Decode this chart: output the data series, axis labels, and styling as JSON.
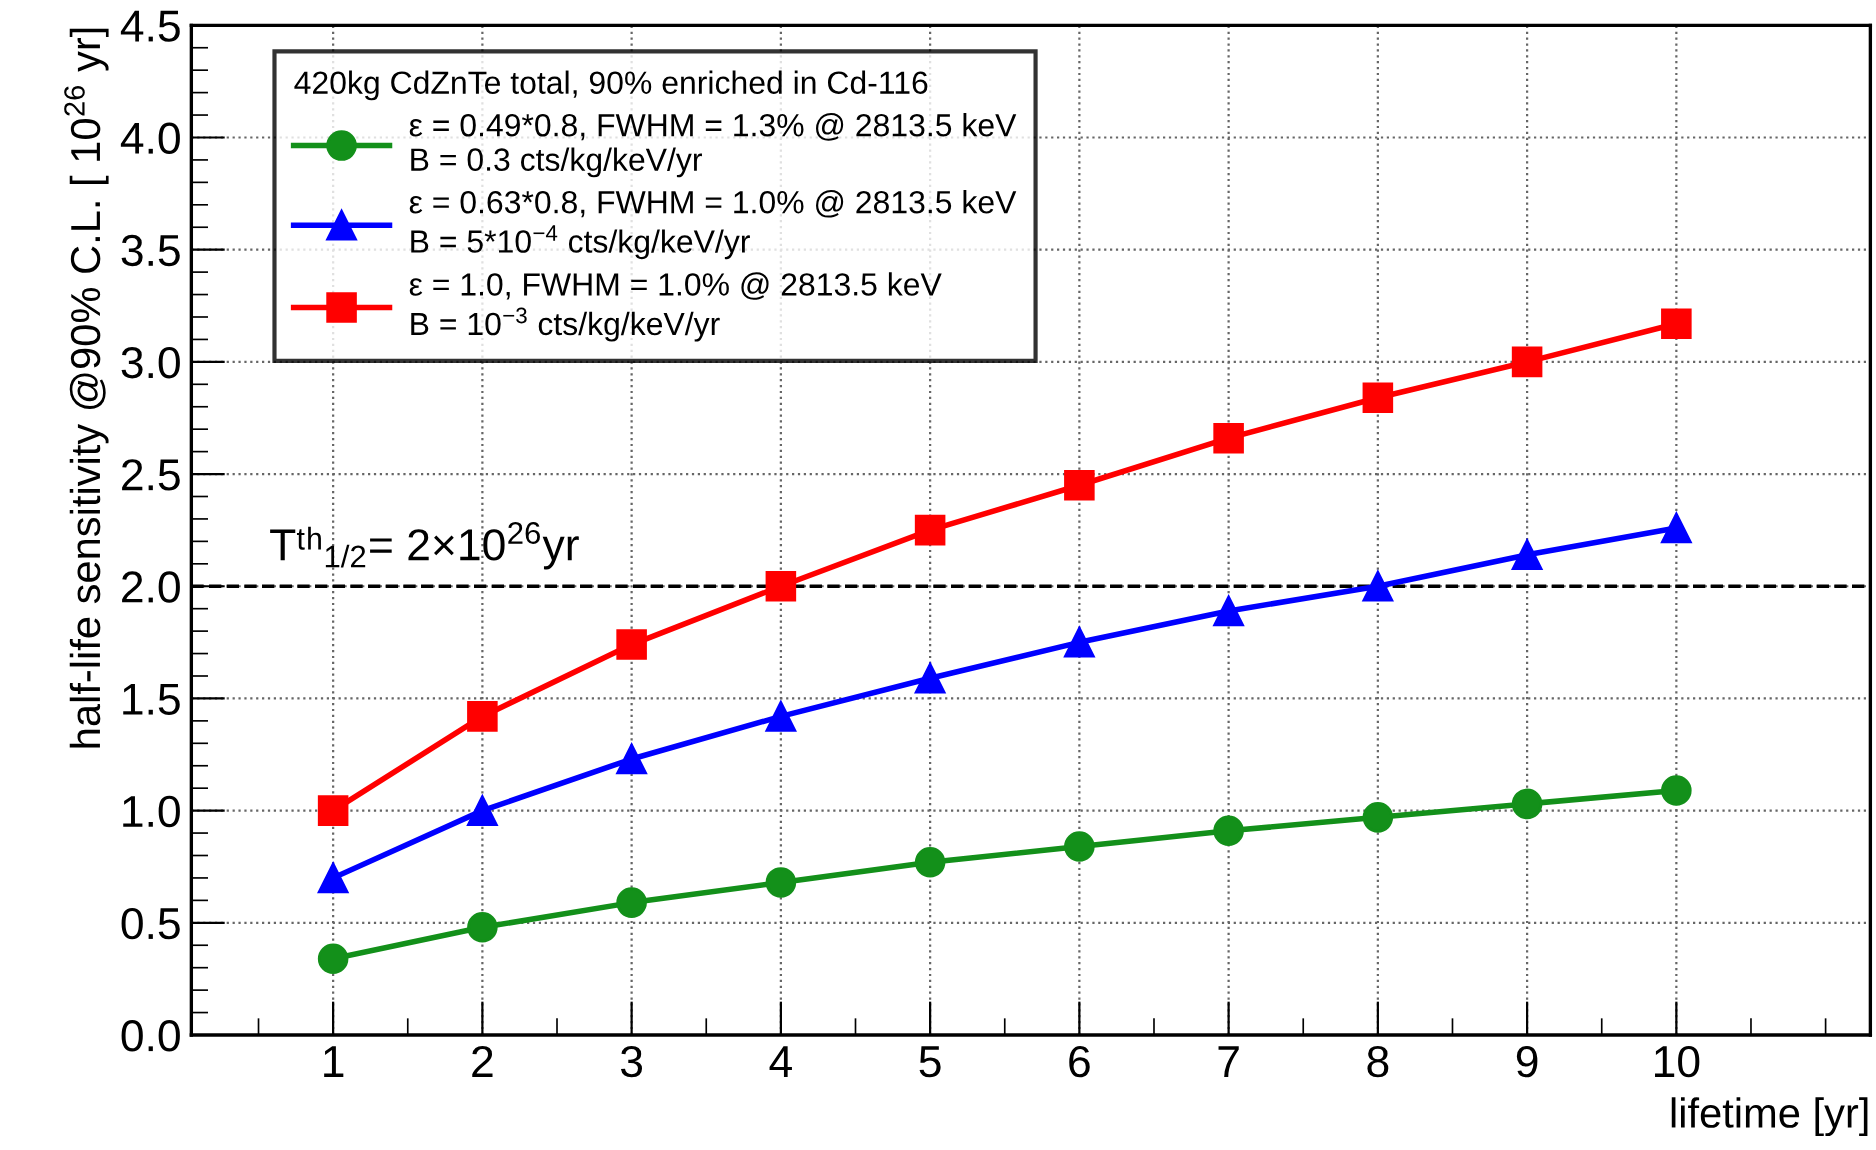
{
  "chart_data": {
    "type": "line",
    "xlabel": "lifetime [yr]",
    "ylabel": "half-life sensitivity @90% C.L. [ 10$^{26}$ yr]",
    "legend_title": "420kg CdZnTe total, 90% enriched in Cd-116",
    "x": [
      1,
      2,
      3,
      4,
      5,
      6,
      7,
      8,
      9,
      10
    ],
    "series": [
      {
        "name": "ε = 0.49*0.8, FWHM = 1.3% @ 2813.5 keV\nB = 0.3 cts/kg/keV/yr",
        "color": "#13901a",
        "marker": "circle",
        "values": [
          0.34,
          0.48,
          0.59,
          0.68,
          0.77,
          0.84,
          0.91,
          0.97,
          1.03,
          1.09
        ]
      },
      {
        "name": "ε = 0.63*0.8, FWHM = 1.0% @ 2813.5 keV\nB = 5*10$^{−4}$ cts/kg/keV/yr",
        "color": "#0000ff",
        "marker": "triangle",
        "values": [
          0.7,
          1.0,
          1.23,
          1.42,
          1.59,
          1.75,
          1.89,
          2.0,
          2.14,
          2.26
        ]
      },
      {
        "name": "ε = 1.0, FWHM = 1.0% @ 2813.5 keV\nB = 10$^{−3}$ cts/kg/keV/yr",
        "color": "#ff0000",
        "marker": "square",
        "values": [
          1.0,
          1.42,
          1.74,
          2.0,
          2.25,
          2.45,
          2.66,
          2.84,
          3.0,
          3.17
        ]
      }
    ],
    "xlim": [
      0.05,
      11.3
    ],
    "xticks": [
      1,
      2,
      3,
      4,
      5,
      6,
      7,
      8,
      9,
      10
    ],
    "ylim": [
      0,
      4.5
    ],
    "yticks": [
      {
        "value": 0,
        "label": "0.0"
      },
      {
        "value": 0.5,
        "label": "0.5"
      },
      {
        "value": 1,
        "label": "1.0"
      },
      {
        "value": 1.5,
        "label": "1.5"
      },
      {
        "value": 2,
        "label": "2.0"
      },
      {
        "value": 2.5,
        "label": "2.5"
      },
      {
        "value": 3,
        "label": "3.0"
      },
      {
        "value": 3.5,
        "label": "3.5"
      },
      {
        "value": 4,
        "label": "4.0"
      },
      {
        "value": 4.5,
        "label": "4.5"
      }
    ],
    "ref_lines": [
      {
        "axis": "y",
        "value": 2,
        "label": "Tᵗʰ$_{1/2}$= 2×10$^{26}$yr",
        "color": "#000000",
        "line_style": "dashed"
      }
    ],
    "grid": true,
    "legend": "top left",
    "line_style": "solid"
  }
}
